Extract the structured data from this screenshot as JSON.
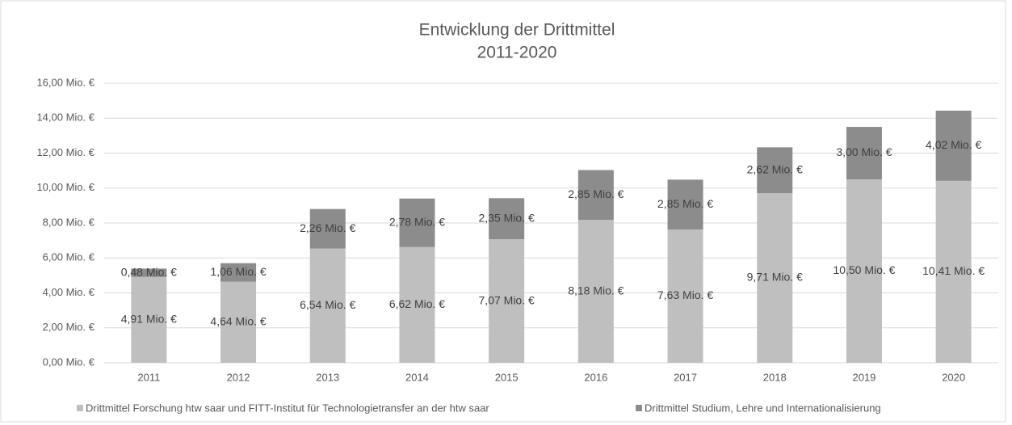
{
  "chart_data": {
    "type": "stacked_bar",
    "title": "Entwicklung der Drittmittel",
    "subtitle": "2011-2020",
    "categories": [
      "2011",
      "2012",
      "2013",
      "2014",
      "2015",
      "2016",
      "2017",
      "2018",
      "2019",
      "2020"
    ],
    "series": [
      {
        "name": "Drittmittel Forschung htw saar und FITT-Institut für Technologietransfer an der htw saar",
        "color": "#bfbfbf",
        "values": [
          4.91,
          4.64,
          6.54,
          6.62,
          7.07,
          8.18,
          7.63,
          9.71,
          10.5,
          10.41
        ],
        "value_labels": [
          "4,91 Mio. €",
          "4,64 Mio. €",
          "6,54 Mio. €",
          "6,62 Mio. €",
          "7,07 Mio. €",
          "8,18 Mio. €",
          "7,63 Mio. €",
          "9,71 Mio. €",
          "10,50 Mio. €",
          "10,41 Mio. €"
        ]
      },
      {
        "name": "Drittmittel Studium, Lehre und Internationalisierung",
        "color": "#8c8c8c",
        "values": [
          0.48,
          1.06,
          2.26,
          2.78,
          2.35,
          2.85,
          2.85,
          2.62,
          3.0,
          4.02
        ],
        "value_labels": [
          "0,48 Mio. €",
          "1,06 Mio. €",
          "2,26 Mio. €",
          "2,78 Mio. €",
          "2,35 Mio. €",
          "2,85 Mio. €",
          "2,85 Mio. €",
          "2,62 Mio. €",
          "3,00 Mio. €",
          "4,02 Mio. €"
        ]
      }
    ],
    "ylim": [
      0,
      16
    ],
    "yticks": [
      {
        "value": 0,
        "label": "0,00 Mio. €"
      },
      {
        "value": 2,
        "label": "2,00 Mio. €"
      },
      {
        "value": 4,
        "label": "4,00 Mio. €"
      },
      {
        "value": 6,
        "label": "6,00 Mio. €"
      },
      {
        "value": 8,
        "label": "8,00 Mio. €"
      },
      {
        "value": 10,
        "label": "10,00 Mio. €"
      },
      {
        "value": 12,
        "label": "12,00 Mio. €"
      },
      {
        "value": 14,
        "label": "14,00 Mio. €"
      },
      {
        "value": 16,
        "label": "16,00 Mio. €"
      }
    ],
    "grid": true,
    "legend": "bottom"
  }
}
